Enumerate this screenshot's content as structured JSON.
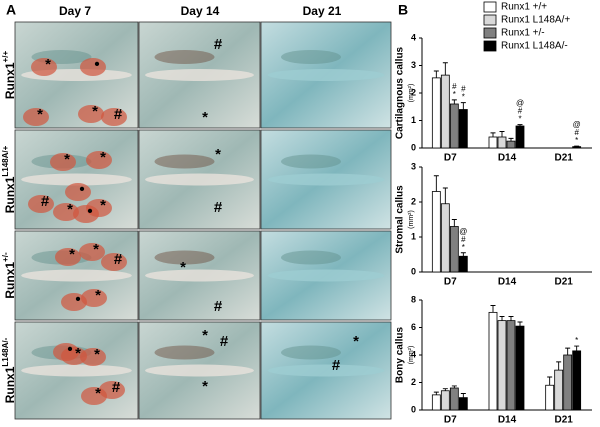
{
  "panel_a": {
    "label": "A",
    "columns": [
      "Day 7",
      "Day 14",
      "Day 21"
    ],
    "rows": [
      {
        "label": "Runx1",
        "sup": "+/+",
        "cells": [
          [
            "*",
            "•",
            "*",
            "*",
            "#"
          ],
          [
            "#",
            "*"
          ],
          []
        ]
      },
      {
        "label": "Runx1",
        "sup": "L148A/+",
        "cells": [
          [
            "*",
            "*",
            "•",
            "#",
            "*",
            "•",
            "*"
          ],
          [
            "*",
            "#"
          ],
          []
        ]
      },
      {
        "label": "Runx1",
        "sup": "+/-",
        "cells": [
          [
            "*",
            "*",
            "#",
            "*",
            "•"
          ],
          [
            "*",
            "#"
          ],
          []
        ]
      },
      {
        "label": "Runx1",
        "sup": "L148A/-",
        "cells": [
          [
            "•",
            "*",
            "*",
            "*",
            "#"
          ],
          [
            "*",
            "#",
            "*"
          ],
          [
            "*",
            "#"
          ]
        ]
      }
    ]
  },
  "panel_b_label": "B",
  "chart_data": [
    {
      "type": "bar",
      "ylabel": "Cartilagnous callus",
      "yunit": "(mm²)",
      "categories": [
        "D7",
        "D14",
        "D21"
      ],
      "ylim": [
        0,
        4
      ],
      "yticks": [
        0,
        1,
        2,
        3,
        4
      ],
      "series": [
        {
          "name": "Runx1 +/+",
          "color": "#ffffff",
          "values": [
            2.55,
            0.4,
            0
          ],
          "errors": [
            0.25,
            0.15,
            0
          ],
          "marks": [
            [],
            [],
            []
          ]
        },
        {
          "name": "Runx1 L148A/+",
          "color": "#d9d9d9",
          "values": [
            2.65,
            0.4,
            0
          ],
          "errors": [
            0.45,
            0.2,
            0
          ],
          "marks": [
            [],
            [],
            []
          ]
        },
        {
          "name": "Runx1 +/-",
          "color": "#808080",
          "values": [
            1.6,
            0.25,
            0
          ],
          "errors": [
            0.15,
            0.1,
            0
          ],
          "marks": [
            [
              "#",
              "*"
            ],
            [],
            []
          ]
        },
        {
          "name": "Runx1 L148A/-",
          "color": "#000000",
          "values": [
            1.4,
            0.8,
            0.05
          ],
          "errors": [
            0.25,
            0.05,
            0.02
          ],
          "marks": [
            [
              "#",
              "*"
            ],
            [
              "@",
              "#",
              "*"
            ],
            [
              "@",
              "#",
              "*"
            ]
          ]
        }
      ]
    },
    {
      "type": "bar",
      "ylabel": "Stromal callus",
      "yunit": "(mm²)",
      "categories": [
        "D7",
        "D14",
        "D21"
      ],
      "ylim": [
        0,
        3
      ],
      "yticks": [
        0,
        1,
        2,
        3
      ],
      "series": [
        {
          "color": "#ffffff",
          "values": [
            2.3,
            null,
            null
          ],
          "errors": [
            0.45,
            null,
            null
          ],
          "marks": [
            [],
            [],
            []
          ]
        },
        {
          "color": "#d9d9d9",
          "values": [
            1.95,
            null,
            null
          ],
          "errors": [
            0.45,
            null,
            null
          ],
          "marks": [
            [],
            [],
            []
          ]
        },
        {
          "color": "#808080",
          "values": [
            1.3,
            null,
            null
          ],
          "errors": [
            0.2,
            null,
            null
          ],
          "marks": [
            [],
            [],
            []
          ]
        },
        {
          "color": "#000000",
          "values": [
            0.45,
            null,
            null
          ],
          "errors": [
            0.1,
            null,
            null
          ],
          "marks": [
            [
              "@",
              "#",
              "*"
            ],
            [],
            []
          ]
        }
      ]
    },
    {
      "type": "bar",
      "ylabel": "Bony callus",
      "yunit": "(mm²)",
      "categories": [
        "D7",
        "D14",
        "D21"
      ],
      "ylim": [
        0,
        8
      ],
      "yticks": [
        0,
        2,
        4,
        6,
        8
      ],
      "series": [
        {
          "color": "#ffffff",
          "values": [
            1.1,
            7.1,
            1.8
          ],
          "errors": [
            0.2,
            0.5,
            0.6
          ],
          "marks": [
            [],
            [],
            []
          ]
        },
        {
          "color": "#d9d9d9",
          "values": [
            1.4,
            6.5,
            2.9
          ],
          "errors": [
            0.15,
            0.3,
            0.6
          ],
          "marks": [
            [],
            [],
            []
          ]
        },
        {
          "color": "#808080",
          "values": [
            1.6,
            6.5,
            4.0
          ],
          "errors": [
            0.15,
            0.3,
            0.5
          ],
          "marks": [
            [],
            [],
            []
          ]
        },
        {
          "color": "#000000",
          "values": [
            0.9,
            6.1,
            4.3
          ],
          "errors": [
            0.3,
            0.3,
            0.35
          ],
          "marks": [
            [],
            [],
            [
              "*"
            ]
          ]
        }
      ]
    }
  ]
}
